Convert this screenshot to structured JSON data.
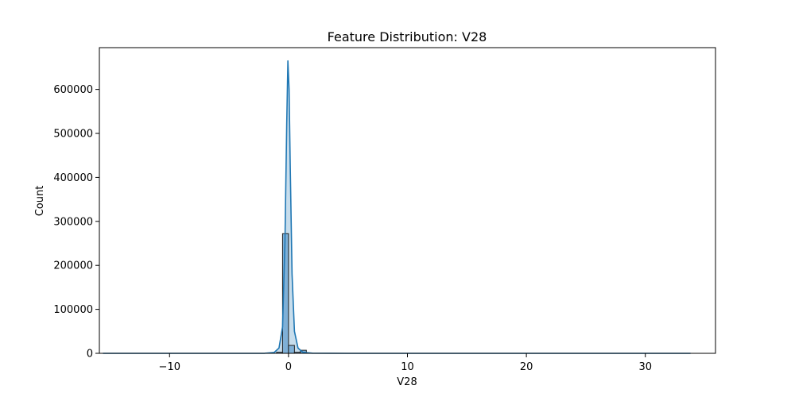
{
  "chart_data": {
    "type": "bar",
    "title": "Feature Distribution: V28",
    "xlabel": "V28",
    "ylabel": "Count",
    "xlim": [
      -15.9,
      35.9
    ],
    "ylim": [
      0,
      695000
    ],
    "xticks": [
      -10,
      0,
      10,
      20,
      30
    ],
    "xtick_labels": [
      "−10",
      "0",
      "10",
      "20",
      "30"
    ],
    "yticks": [
      0,
      100000,
      200000,
      300000,
      400000,
      500000,
      600000
    ],
    "ytick_labels": [
      "0",
      "100000",
      "200000",
      "300000",
      "400000",
      "500000",
      "600000"
    ],
    "histogram": {
      "bin_edges": [
        -1.0,
        -0.5,
        0.0,
        0.5,
        1.0,
        1.5
      ],
      "counts": [
        2500,
        272000,
        18000,
        2500,
        7000
      ],
      "fill_color": "#7FB0D7",
      "edge_color": "#1f1f1f"
    },
    "kde": {
      "color": "#1f77b4",
      "points": [
        [
          -15.6,
          0
        ],
        [
          -10,
          0
        ],
        [
          -5,
          0
        ],
        [
          -2,
          200
        ],
        [
          -1.2,
          2000
        ],
        [
          -0.8,
          12000
        ],
        [
          -0.5,
          60000
        ],
        [
          -0.3,
          250000
        ],
        [
          -0.15,
          520000
        ],
        [
          -0.05,
          665000
        ],
        [
          0.05,
          600000
        ],
        [
          0.15,
          420000
        ],
        [
          0.3,
          180000
        ],
        [
          0.5,
          50000
        ],
        [
          0.8,
          12000
        ],
        [
          1.2,
          2500
        ],
        [
          2,
          300
        ],
        [
          5,
          0
        ],
        [
          10,
          0
        ],
        [
          20,
          0
        ],
        [
          33.8,
          0
        ]
      ]
    },
    "grid": false,
    "legend": "none"
  }
}
